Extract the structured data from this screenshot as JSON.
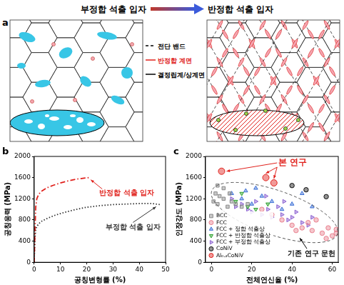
{
  "header": {
    "left": "부정합 석출 입자",
    "right": "반정합 석출 입자"
  },
  "diagram": {
    "label": "a",
    "legend": [
      {
        "name": "전단 밴드",
        "color": "#000000",
        "line_style": "dashed"
      },
      {
        "name": "반정합 계면",
        "color": "#e0201b",
        "line_style": "solid"
      },
      {
        "name": "결정립계/상계면",
        "color": "#000000",
        "line_style": "solid"
      }
    ]
  },
  "chart_data": [
    {
      "type": "line",
      "label": "b",
      "x_label": "공칭변형률 (%)",
      "y_label": "공칭응력 (MPa)",
      "xlim": [
        0,
        50
      ],
      "xticks": [
        0,
        10,
        20,
        30,
        40,
        50
      ],
      "ylim": [
        0,
        2000
      ],
      "yticks": [
        0,
        400,
        800,
        1200,
        1600,
        2000
      ],
      "grid": false,
      "series": [
        {
          "name": "반정합 석출 입자",
          "color": "#e0201b",
          "line_style": "dashdot",
          "x": [
            0,
            0.3,
            0.6,
            1,
            1.5,
            2,
            3,
            5,
            7,
            10,
            13,
            16,
            19,
            21
          ],
          "values": [
            0,
            600,
            1050,
            1200,
            1260,
            1300,
            1350,
            1410,
            1450,
            1500,
            1540,
            1570,
            1590,
            1600
          ]
        },
        {
          "name": "부정합 석출 입자",
          "color": "#333333",
          "line_style": "dotted",
          "x": [
            0,
            0.3,
            0.6,
            1,
            2,
            3,
            5,
            8,
            12,
            16,
            20,
            25,
            30,
            35,
            40,
            45,
            48
          ],
          "values": [
            0,
            450,
            620,
            680,
            740,
            780,
            830,
            890,
            950,
            1000,
            1040,
            1070,
            1090,
            1100,
            1110,
            1110,
            1090
          ]
        }
      ]
    },
    {
      "type": "scatter",
      "label": "c",
      "x_label": "전체연신율 (%)",
      "y_label": "인장강도 (MPa)",
      "xlim": [
        -3,
        63
      ],
      "xticks": [
        0,
        20,
        40,
        60
      ],
      "ylim": [
        0,
        2000
      ],
      "yticks": [
        0,
        400,
        800,
        1200,
        1600,
        2000
      ],
      "grid": false,
      "legend": "lower left",
      "annotations": [
        {
          "text": "본 연구",
          "color": "#e0201b"
        },
        {
          "text": "기존 연구 문헌"
        }
      ],
      "series": [
        {
          "name": "BCC",
          "color": "#888888",
          "marker": "square",
          "x": [
            1,
            3,
            4,
            6,
            2,
            8,
            10,
            12,
            15,
            3,
            18,
            6,
            9
          ],
          "values": [
            1150,
            1100,
            1250,
            1200,
            1300,
            1050,
            1150,
            1100,
            1050,
            1450,
            1100,
            1400,
            1300
          ]
        },
        {
          "name": "FCC",
          "color": "#e8818f",
          "marker": "circle",
          "x": [
            40,
            45,
            50,
            55,
            60,
            62,
            48,
            52,
            58,
            35,
            42,
            30,
            25,
            57,
            62
          ],
          "values": [
            700,
            650,
            600,
            550,
            500,
            550,
            750,
            800,
            650,
            800,
            600,
            900,
            1000,
            450,
            620
          ]
        },
        {
          "name": "FCC + 정합 석출상",
          "color": "#3b6fd6",
          "marker": "triangle_up",
          "x": [
            10,
            15,
            20,
            25,
            30,
            35,
            40,
            45,
            22,
            50,
            17
          ],
          "values": [
            1300,
            1200,
            1100,
            1250,
            1150,
            1000,
            1100,
            1300,
            1400,
            1050,
            1350
          ]
        },
        {
          "name": "FCC + 반정합 석출상",
          "color": "#2ca02c",
          "marker": "triangle_down",
          "x": [
            12,
            18,
            22,
            28,
            15
          ],
          "values": [
            1150,
            1050,
            1000,
            1100,
            1300
          ]
        },
        {
          "name": "FCC + 부정합 석출상",
          "color": "#8a5fd0",
          "marker": "triangle_right",
          "x": [
            10,
            15,
            18,
            20,
            25,
            28,
            30,
            35,
            38,
            40,
            45,
            22,
            33,
            42,
            48,
            12,
            27,
            36,
            50
          ],
          "values": [
            1200,
            1100,
            1000,
            950,
            900,
            1000,
            850,
            900,
            800,
            850,
            750,
            1150,
            1050,
            950,
            700,
            1050,
            1250,
            1150,
            850
          ]
        },
        {
          "name": "CoNiV",
          "color": "#111111",
          "marker": "circle",
          "x": [
            40,
            47,
            57
          ],
          "values": [
            1450,
            1370,
            1240
          ]
        },
        {
          "name": "Al₀.₂CoNiV",
          "color": "#e0201b",
          "marker": "circle",
          "x": [
            5,
            27,
            31
          ],
          "values": [
            1720,
            1600,
            1500
          ]
        }
      ]
    }
  ]
}
